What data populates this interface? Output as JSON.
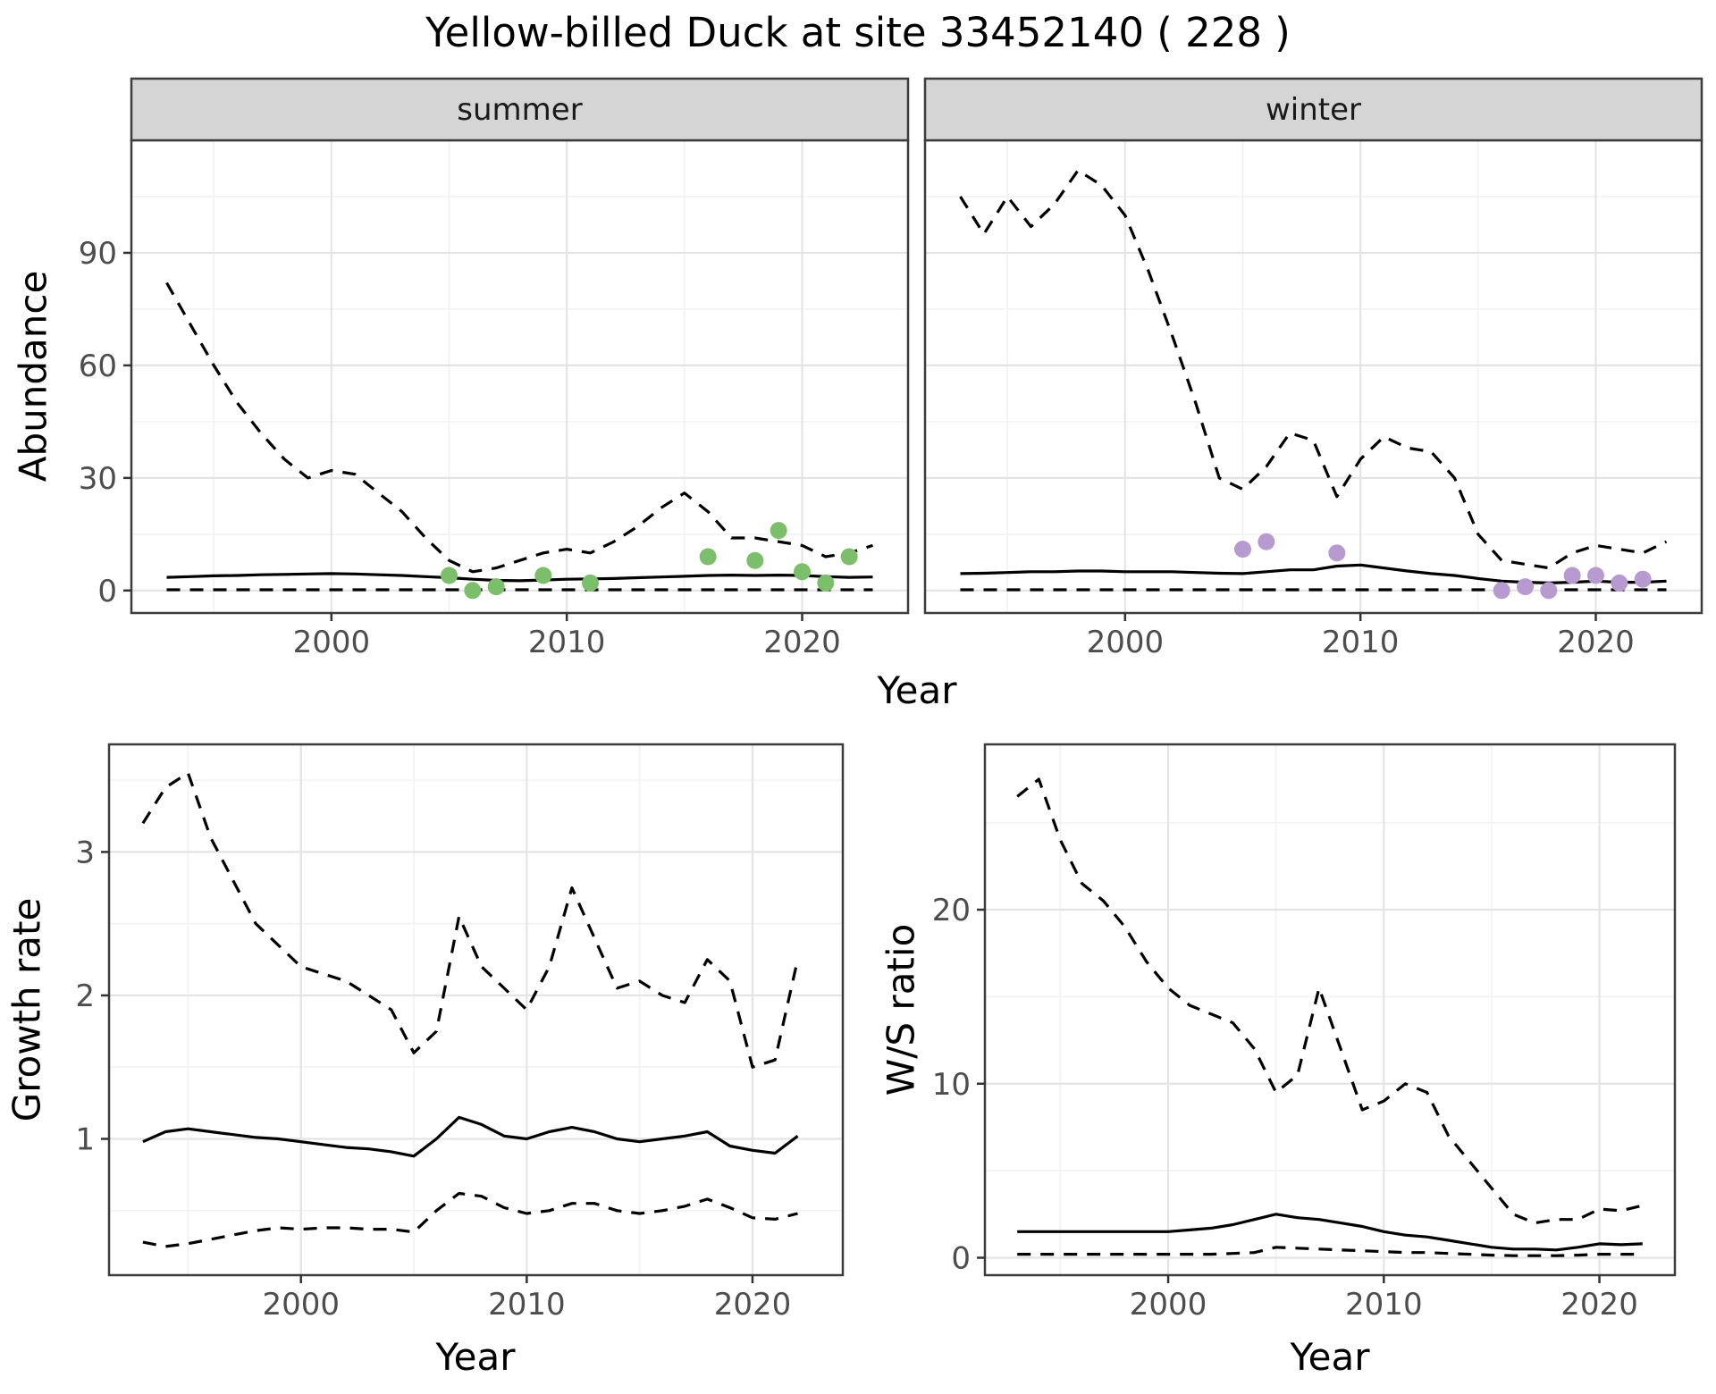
{
  "title": "Yellow-billed Duck at site 33452140 ( 228 )",
  "axis_titles": {
    "year": "Year",
    "abundance": "Abundance",
    "growth_rate": "Growth rate",
    "ws_ratio": "W/S ratio"
  },
  "facet_labels": [
    "summer",
    "winter"
  ],
  "colors": {
    "summer_points": "#7CBF6B",
    "winter_points": "#B79BD0",
    "line": "#000000",
    "strip_bg": "#D5D5D5",
    "strip_text": "#1A1A1A",
    "panel_border": "#3C3C3C",
    "grid_major": "#E4E4E4",
    "grid_minor": "#F2F2F2",
    "axis_text": "#4D4D4D"
  },
  "chart_data": [
    {
      "id": "abundance-summer",
      "type": "line",
      "facet": "summer",
      "xlabel": "Year",
      "ylabel": "Abundance",
      "xlim": [
        1991.5,
        2024.5
      ],
      "ylim": [
        -6,
        120
      ],
      "xticks": [
        2000,
        2010,
        2020
      ],
      "yticks": [
        0,
        30,
        60,
        90
      ],
      "series": [
        {
          "name": "upper-ci",
          "style": "dashed",
          "color": "#000000",
          "x": [
            1993,
            1994,
            1995,
            1996,
            1997,
            1998,
            1999,
            2000,
            2001,
            2002,
            2003,
            2004,
            2005,
            2006,
            2007,
            2008,
            2009,
            2010,
            2011,
            2012,
            2013,
            2014,
            2015,
            2016,
            2017,
            2018,
            2019,
            2020,
            2021,
            2022,
            2023
          ],
          "y": [
            82,
            71,
            60,
            50,
            42,
            35,
            30,
            32,
            31,
            26,
            21,
            14,
            8,
            5,
            6,
            8,
            10,
            11,
            10,
            13,
            17,
            22,
            26,
            21,
            14,
            14,
            13,
            12,
            9,
            10,
            12
          ]
        },
        {
          "name": "median",
          "style": "solid",
          "color": "#000000",
          "x": [
            1993,
            1994,
            1995,
            1996,
            1997,
            1998,
            1999,
            2000,
            2001,
            2002,
            2003,
            2004,
            2005,
            2006,
            2007,
            2008,
            2009,
            2010,
            2011,
            2012,
            2013,
            2014,
            2015,
            2016,
            2017,
            2018,
            2019,
            2020,
            2021,
            2022,
            2023
          ],
          "y": [
            3.5,
            3.7,
            3.9,
            4,
            4.2,
            4.3,
            4.4,
            4.5,
            4.4,
            4.2,
            4,
            3.7,
            3.4,
            3,
            2.7,
            2.6,
            2.8,
            3,
            3.1,
            3.2,
            3.4,
            3.6,
            3.8,
            4,
            4.1,
            4,
            4.1,
            4,
            3.7,
            3.5,
            3.6
          ]
        },
        {
          "name": "lower-ci",
          "style": "dashed",
          "color": "#000000",
          "x": [
            1993,
            1994,
            1995,
            1996,
            1997,
            1998,
            1999,
            2000,
            2001,
            2002,
            2003,
            2004,
            2005,
            2006,
            2007,
            2008,
            2009,
            2010,
            2011,
            2012,
            2013,
            2014,
            2015,
            2016,
            2017,
            2018,
            2019,
            2020,
            2021,
            2022,
            2023
          ],
          "y": [
            0.2,
            0.2,
            0.2,
            0.2,
            0.2,
            0.2,
            0.2,
            0.2,
            0.2,
            0.2,
            0.2,
            0.2,
            0.2,
            0.2,
            0.2,
            0.2,
            0.2,
            0.2,
            0.2,
            0.2,
            0.2,
            0.2,
            0.2,
            0.2,
            0.2,
            0.2,
            0.2,
            0.2,
            0.2,
            0.2,
            0.2
          ]
        },
        {
          "name": "observed-points",
          "style": "points",
          "color": "#7CBF6B",
          "x": [
            2005,
            2006,
            2007,
            2009,
            2011,
            2016,
            2018,
            2019,
            2020,
            2021,
            2022
          ],
          "y": [
            4,
            0,
            1,
            4,
            2,
            9,
            8,
            16,
            5,
            2,
            9
          ]
        }
      ]
    },
    {
      "id": "abundance-winter",
      "type": "line",
      "facet": "winter",
      "xlabel": "Year",
      "ylabel": "Abundance",
      "xlim": [
        1991.5,
        2024.5
      ],
      "ylim": [
        -6,
        120
      ],
      "xticks": [
        2000,
        2010,
        2020
      ],
      "yticks": [
        0,
        30,
        60,
        90
      ],
      "series": [
        {
          "name": "upper-ci",
          "style": "dashed",
          "color": "#000000",
          "x": [
            1993,
            1994,
            1995,
            1996,
            1997,
            1998,
            1999,
            2000,
            2001,
            2002,
            2003,
            2004,
            2005,
            2006,
            2007,
            2008,
            2009,
            2010,
            2011,
            2012,
            2013,
            2014,
            2015,
            2016,
            2017,
            2018,
            2019,
            2020,
            2021,
            2022,
            2023
          ],
          "y": [
            105,
            95,
            105,
            97,
            103,
            112,
            108,
            100,
            85,
            68,
            50,
            30,
            27,
            33,
            42,
            40,
            25,
            35,
            41,
            38,
            37,
            30,
            15,
            8,
            7,
            6,
            10,
            12,
            11,
            10,
            13
          ]
        },
        {
          "name": "median",
          "style": "solid",
          "color": "#000000",
          "x": [
            1993,
            1994,
            1995,
            1996,
            1997,
            1998,
            1999,
            2000,
            2001,
            2002,
            2003,
            2004,
            2005,
            2006,
            2007,
            2008,
            2009,
            2010,
            2011,
            2012,
            2013,
            2014,
            2015,
            2016,
            2017,
            2018,
            2019,
            2020,
            2021,
            2022,
            2023
          ],
          "y": [
            4.5,
            4.6,
            4.8,
            5,
            5,
            5.2,
            5.2,
            5,
            5,
            5,
            4.8,
            4.6,
            4.5,
            5,
            5.5,
            5.5,
            6.5,
            6.8,
            6,
            5.2,
            4.5,
            4,
            3.2,
            2.5,
            2.2,
            2,
            2.2,
            2.5,
            2.2,
            2.2,
            2.5
          ]
        },
        {
          "name": "lower-ci",
          "style": "dashed",
          "color": "#000000",
          "x": [
            1993,
            1994,
            1995,
            1996,
            1997,
            1998,
            1999,
            2000,
            2001,
            2002,
            2003,
            2004,
            2005,
            2006,
            2007,
            2008,
            2009,
            2010,
            2011,
            2012,
            2013,
            2014,
            2015,
            2016,
            2017,
            2018,
            2019,
            2020,
            2021,
            2022,
            2023
          ],
          "y": [
            0.2,
            0.2,
            0.2,
            0.2,
            0.2,
            0.2,
            0.2,
            0.2,
            0.2,
            0.2,
            0.2,
            0.2,
            0.2,
            0.2,
            0.2,
            0.2,
            0.2,
            0.2,
            0.2,
            0.2,
            0.2,
            0.2,
            0.2,
            0.2,
            0.2,
            0.2,
            0.2,
            0.2,
            0.2,
            0.2,
            0.2
          ]
        },
        {
          "name": "observed-points",
          "style": "points",
          "color": "#B79BD0",
          "x": [
            2005,
            2006,
            2009,
            2016,
            2017,
            2018,
            2019,
            2020,
            2021,
            2022
          ],
          "y": [
            11,
            13,
            10,
            0,
            1,
            0,
            4,
            4,
            2,
            3
          ]
        }
      ]
    },
    {
      "id": "growth-rate",
      "type": "line",
      "facet": null,
      "xlabel": "Year",
      "ylabel": "Growth rate",
      "xlim": [
        1991.5,
        2024
      ],
      "ylim": [
        0.05,
        3.75
      ],
      "xticks": [
        2000,
        2010,
        2020
      ],
      "yticks": [
        1,
        2,
        3
      ],
      "series": [
        {
          "name": "upper-ci",
          "style": "dashed",
          "color": "#000000",
          "x": [
            1993,
            1994,
            1995,
            1996,
            1997,
            1998,
            1999,
            2000,
            2001,
            2002,
            2003,
            2004,
            2005,
            2006,
            2007,
            2008,
            2009,
            2010,
            2011,
            2012,
            2013,
            2014,
            2015,
            2016,
            2017,
            2018,
            2019,
            2020,
            2021,
            2022
          ],
          "y": [
            3.2,
            3.45,
            3.55,
            3.1,
            2.8,
            2.5,
            2.35,
            2.2,
            2.15,
            2.1,
            2.0,
            1.9,
            1.6,
            1.75,
            2.55,
            2.2,
            2.05,
            1.9,
            2.2,
            2.75,
            2.4,
            2.05,
            2.1,
            2.0,
            1.95,
            2.25,
            2.1,
            1.5,
            1.55,
            2.25
          ]
        },
        {
          "name": "median",
          "style": "solid",
          "color": "#000000",
          "x": [
            1993,
            1994,
            1995,
            1996,
            1997,
            1998,
            1999,
            2000,
            2001,
            2002,
            2003,
            2004,
            2005,
            2006,
            2007,
            2008,
            2009,
            2010,
            2011,
            2012,
            2013,
            2014,
            2015,
            2016,
            2017,
            2018,
            2019,
            2020,
            2021,
            2022
          ],
          "y": [
            0.98,
            1.05,
            1.07,
            1.05,
            1.03,
            1.01,
            1.0,
            0.98,
            0.96,
            0.94,
            0.93,
            0.91,
            0.88,
            1.0,
            1.15,
            1.1,
            1.02,
            1.0,
            1.05,
            1.08,
            1.05,
            1.0,
            0.98,
            1.0,
            1.02,
            1.05,
            0.95,
            0.92,
            0.9,
            1.02
          ]
        },
        {
          "name": "lower-ci",
          "style": "dashed",
          "color": "#000000",
          "x": [
            1993,
            1994,
            1995,
            1996,
            1997,
            1998,
            1999,
            2000,
            2001,
            2002,
            2003,
            2004,
            2005,
            2006,
            2007,
            2008,
            2009,
            2010,
            2011,
            2012,
            2013,
            2014,
            2015,
            2016,
            2017,
            2018,
            2019,
            2020,
            2021,
            2022
          ],
          "y": [
            0.28,
            0.25,
            0.27,
            0.3,
            0.33,
            0.36,
            0.38,
            0.37,
            0.38,
            0.38,
            0.37,
            0.37,
            0.35,
            0.5,
            0.62,
            0.6,
            0.52,
            0.48,
            0.5,
            0.55,
            0.55,
            0.5,
            0.48,
            0.5,
            0.53,
            0.58,
            0.52,
            0.45,
            0.44,
            0.48
          ]
        }
      ]
    },
    {
      "id": "ws-ratio",
      "type": "line",
      "facet": null,
      "xlabel": "Year",
      "ylabel": "W/S ratio",
      "xlim": [
        1991.5,
        2023.5
      ],
      "ylim": [
        -1,
        29.5
      ],
      "xticks": [
        2000,
        2010,
        2020
      ],
      "yticks": [
        0,
        10,
        20
      ],
      "series": [
        {
          "name": "upper-ci",
          "style": "dashed",
          "color": "#000000",
          "x": [
            1993,
            1994,
            1995,
            1996,
            1997,
            1998,
            1999,
            2000,
            2001,
            2002,
            2003,
            2004,
            2005,
            2006,
            2007,
            2008,
            2009,
            2010,
            2011,
            2012,
            2013,
            2014,
            2015,
            2016,
            2017,
            2018,
            2019,
            2020,
            2021,
            2022
          ],
          "y": [
            26.5,
            27.5,
            24,
            21.5,
            20.5,
            19,
            17,
            15.5,
            14.5,
            14,
            13.5,
            12,
            9.5,
            10.5,
            15.5,
            12,
            8.5,
            9,
            10,
            9.5,
            7,
            5.5,
            4,
            2.5,
            2,
            2.2,
            2.2,
            2.8,
            2.7,
            3
          ]
        },
        {
          "name": "median",
          "style": "solid",
          "color": "#000000",
          "x": [
            1993,
            1994,
            1995,
            1996,
            1997,
            1998,
            1999,
            2000,
            2001,
            2002,
            2003,
            2004,
            2005,
            2006,
            2007,
            2008,
            2009,
            2010,
            2011,
            2012,
            2013,
            2014,
            2015,
            2016,
            2017,
            2018,
            2019,
            2020,
            2021,
            2022
          ],
          "y": [
            1.5,
            1.5,
            1.5,
            1.5,
            1.5,
            1.5,
            1.5,
            1.5,
            1.6,
            1.7,
            1.9,
            2.2,
            2.5,
            2.3,
            2.2,
            2.0,
            1.8,
            1.5,
            1.3,
            1.2,
            1.0,
            0.8,
            0.6,
            0.5,
            0.5,
            0.45,
            0.6,
            0.8,
            0.75,
            0.8
          ]
        },
        {
          "name": "lower-ci",
          "style": "dashed",
          "color": "#000000",
          "x": [
            1993,
            1994,
            1995,
            1996,
            1997,
            1998,
            1999,
            2000,
            2001,
            2002,
            2003,
            2004,
            2005,
            2006,
            2007,
            2008,
            2009,
            2010,
            2011,
            2012,
            2013,
            2014,
            2015,
            2016,
            2017,
            2018,
            2019,
            2020,
            2021,
            2022
          ],
          "y": [
            0.2,
            0.2,
            0.2,
            0.2,
            0.2,
            0.2,
            0.2,
            0.2,
            0.2,
            0.2,
            0.25,
            0.3,
            0.6,
            0.55,
            0.5,
            0.45,
            0.4,
            0.35,
            0.3,
            0.3,
            0.25,
            0.2,
            0.15,
            0.12,
            0.12,
            0.12,
            0.15,
            0.2,
            0.2,
            0.2
          ]
        }
      ]
    }
  ]
}
